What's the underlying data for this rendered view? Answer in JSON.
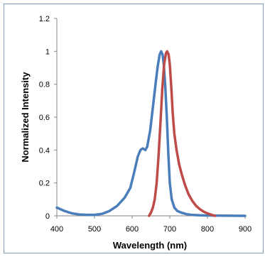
{
  "chart_data": {
    "type": "line",
    "title": "",
    "xlabel": "Wavelength (nm)",
    "ylabel": "Normalized Intensity",
    "xlim": [
      400,
      900
    ],
    "ylim": [
      0,
      1.2
    ],
    "x_ticks": [
      "400",
      "500",
      "600",
      "700",
      "800",
      "900"
    ],
    "y_ticks": [
      "0",
      "0.2",
      "0.4",
      "0.6",
      "0.8",
      "1",
      "1.2"
    ],
    "grid": false,
    "legend": "none",
    "series": [
      {
        "color": "#4a7ebb",
        "x": [
          400,
          420,
          440,
          460,
          480,
          500,
          520,
          540,
          560,
          580,
          595,
          605,
          615,
          622,
          628,
          635,
          640,
          648,
          655,
          662,
          668,
          673,
          677,
          681,
          684,
          688,
          692,
          696,
          700,
          705,
          712,
          720,
          730,
          745,
          760,
          780,
          800,
          840,
          900
        ],
        "y": [
          0.05,
          0.03,
          0.015,
          0.008,
          0.006,
          0.006,
          0.012,
          0.03,
          0.06,
          0.11,
          0.17,
          0.26,
          0.36,
          0.4,
          0.41,
          0.4,
          0.42,
          0.52,
          0.66,
          0.8,
          0.91,
          0.98,
          1.0,
          0.98,
          0.92,
          0.79,
          0.6,
          0.38,
          0.2,
          0.1,
          0.05,
          0.03,
          0.02,
          0.01,
          0.005,
          0.003,
          0.002,
          0.001,
          0.0
        ]
      },
      {
        "color": "#be4b48",
        "x": [
          645,
          650,
          655,
          660,
          665,
          670,
          675,
          680,
          685,
          690,
          693,
          697,
          700,
          704,
          708,
          712,
          718,
          725,
          732,
          740,
          750,
          760,
          770,
          780,
          790,
          800,
          810,
          820
        ],
        "y": [
          0.0,
          0.02,
          0.05,
          0.1,
          0.2,
          0.36,
          0.56,
          0.77,
          0.92,
          0.99,
          1.0,
          0.98,
          0.92,
          0.78,
          0.62,
          0.5,
          0.4,
          0.31,
          0.25,
          0.19,
          0.13,
          0.09,
          0.06,
          0.04,
          0.025,
          0.015,
          0.007,
          0.0
        ]
      }
    ]
  }
}
